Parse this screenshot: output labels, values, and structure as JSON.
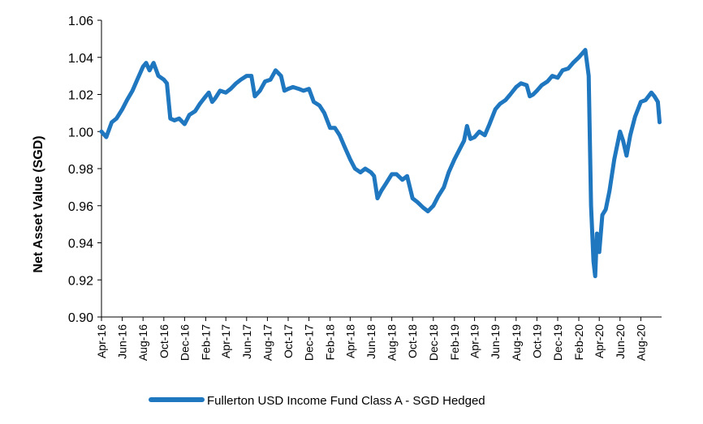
{
  "chart_data": {
    "type": "line",
    "title": "",
    "xlabel": "",
    "ylabel": "Net Asset Value (SGD)",
    "ylim": [
      0.9,
      1.06
    ],
    "y_ticks": [
      "0.90",
      "0.92",
      "0.94",
      "0.96",
      "0.98",
      "1.00",
      "1.02",
      "1.04",
      "1.06"
    ],
    "x_ticks": [
      "Apr-16",
      "Jun-16",
      "Aug-16",
      "Oct-16",
      "Dec-16",
      "Feb-17",
      "Apr-17",
      "Jun-17",
      "Aug-17",
      "Oct-17",
      "Dec-17",
      "Feb-18",
      "Apr-18",
      "Jun-18",
      "Aug-18",
      "Oct-18",
      "Dec-18",
      "Feb-19",
      "Apr-19",
      "Jun-19",
      "Aug-19",
      "Oct-19",
      "Dec-19",
      "Feb-20",
      "Apr-20",
      "Jun-20",
      "Aug-20"
    ],
    "grid": false,
    "legend_position": "bottom-center",
    "series": [
      {
        "name": "Fullerton USD Income Fund Class A - SGD Hedged",
        "color": "#1f77c0",
        "points": [
          [
            "2016-04-01",
            1.0
          ],
          [
            "2016-04-15",
            0.997
          ],
          [
            "2016-05-01",
            1.005
          ],
          [
            "2016-05-15",
            1.007
          ],
          [
            "2016-06-01",
            1.012
          ],
          [
            "2016-06-15",
            1.017
          ],
          [
            "2016-07-01",
            1.022
          ],
          [
            "2016-07-15",
            1.028
          ],
          [
            "2016-08-01",
            1.035
          ],
          [
            "2016-08-10",
            1.037
          ],
          [
            "2016-08-20",
            1.033
          ],
          [
            "2016-09-01",
            1.037
          ],
          [
            "2016-09-15",
            1.03
          ],
          [
            "2016-10-01",
            1.028
          ],
          [
            "2016-10-10",
            1.026
          ],
          [
            "2016-10-20",
            1.007
          ],
          [
            "2016-11-01",
            1.006
          ],
          [
            "2016-11-15",
            1.007
          ],
          [
            "2016-12-01",
            1.004
          ],
          [
            "2016-12-15",
            1.009
          ],
          [
            "2017-01-01",
            1.011
          ],
          [
            "2017-01-15",
            1.015
          ],
          [
            "2017-02-01",
            1.019
          ],
          [
            "2017-02-10",
            1.021
          ],
          [
            "2017-02-20",
            1.016
          ],
          [
            "2017-03-01",
            1.018
          ],
          [
            "2017-03-15",
            1.022
          ],
          [
            "2017-04-01",
            1.021
          ],
          [
            "2017-04-15",
            1.023
          ],
          [
            "2017-05-01",
            1.026
          ],
          [
            "2017-05-15",
            1.028
          ],
          [
            "2017-06-01",
            1.03
          ],
          [
            "2017-06-15",
            1.03
          ],
          [
            "2017-06-25",
            1.019
          ],
          [
            "2017-07-10",
            1.022
          ],
          [
            "2017-07-25",
            1.027
          ],
          [
            "2017-08-10",
            1.028
          ],
          [
            "2017-08-25",
            1.033
          ],
          [
            "2017-09-10",
            1.03
          ],
          [
            "2017-09-20",
            1.022
          ],
          [
            "2017-10-01",
            1.023
          ],
          [
            "2017-10-15",
            1.024
          ],
          [
            "2017-11-01",
            1.023
          ],
          [
            "2017-11-15",
            1.022
          ],
          [
            "2017-12-01",
            1.023
          ],
          [
            "2017-12-15",
            1.016
          ],
          [
            "2018-01-01",
            1.014
          ],
          [
            "2018-01-15",
            1.01
          ],
          [
            "2018-02-01",
            1.002
          ],
          [
            "2018-02-15",
            1.002
          ],
          [
            "2018-03-01",
            0.998
          ],
          [
            "2018-03-15",
            0.992
          ],
          [
            "2018-04-01",
            0.985
          ],
          [
            "2018-04-15",
            0.98
          ],
          [
            "2018-05-01",
            0.978
          ],
          [
            "2018-05-15",
            0.98
          ],
          [
            "2018-06-01",
            0.978
          ],
          [
            "2018-06-10",
            0.976
          ],
          [
            "2018-06-20",
            0.964
          ],
          [
            "2018-07-01",
            0.968
          ],
          [
            "2018-07-15",
            0.972
          ],
          [
            "2018-08-01",
            0.977
          ],
          [
            "2018-08-15",
            0.977
          ],
          [
            "2018-09-01",
            0.974
          ],
          [
            "2018-09-15",
            0.976
          ],
          [
            "2018-10-01",
            0.964
          ],
          [
            "2018-10-15",
            0.962
          ],
          [
            "2018-11-01",
            0.959
          ],
          [
            "2018-11-15",
            0.957
          ],
          [
            "2018-12-01",
            0.96
          ],
          [
            "2018-12-15",
            0.965
          ],
          [
            "2019-01-01",
            0.97
          ],
          [
            "2019-01-15",
            0.978
          ],
          [
            "2019-02-01",
            0.985
          ],
          [
            "2019-02-15",
            0.99
          ],
          [
            "2019-03-01",
            0.995
          ],
          [
            "2019-03-10",
            1.003
          ],
          [
            "2019-03-20",
            0.996
          ],
          [
            "2019-04-01",
            0.997
          ],
          [
            "2019-04-15",
            1.0
          ],
          [
            "2019-05-01",
            0.998
          ],
          [
            "2019-05-15",
            1.004
          ],
          [
            "2019-06-01",
            1.012
          ],
          [
            "2019-06-15",
            1.015
          ],
          [
            "2019-07-01",
            1.017
          ],
          [
            "2019-07-15",
            1.02
          ],
          [
            "2019-08-01",
            1.024
          ],
          [
            "2019-08-15",
            1.026
          ],
          [
            "2019-09-01",
            1.025
          ],
          [
            "2019-09-10",
            1.019
          ],
          [
            "2019-09-20",
            1.02
          ],
          [
            "2019-10-01",
            1.022
          ],
          [
            "2019-10-15",
            1.025
          ],
          [
            "2019-11-01",
            1.027
          ],
          [
            "2019-11-15",
            1.03
          ],
          [
            "2019-12-01",
            1.029
          ],
          [
            "2019-12-15",
            1.033
          ],
          [
            "2020-01-01",
            1.034
          ],
          [
            "2020-01-15",
            1.037
          ],
          [
            "2020-02-01",
            1.04
          ],
          [
            "2020-02-20",
            1.044
          ],
          [
            "2020-03-01",
            1.03
          ],
          [
            "2020-03-08",
            0.96
          ],
          [
            "2020-03-15",
            0.93
          ],
          [
            "2020-03-20",
            0.922
          ],
          [
            "2020-03-25",
            0.945
          ],
          [
            "2020-04-01",
            0.935
          ],
          [
            "2020-04-10",
            0.955
          ],
          [
            "2020-04-20",
            0.958
          ],
          [
            "2020-05-01",
            0.968
          ],
          [
            "2020-05-15",
            0.985
          ],
          [
            "2020-06-01",
            1.0
          ],
          [
            "2020-06-10",
            0.995
          ],
          [
            "2020-06-20",
            0.987
          ],
          [
            "2020-07-01",
            0.998
          ],
          [
            "2020-07-15",
            1.008
          ],
          [
            "2020-08-01",
            1.016
          ],
          [
            "2020-08-15",
            1.017
          ],
          [
            "2020-09-01",
            1.021
          ],
          [
            "2020-09-10",
            1.019
          ],
          [
            "2020-09-20",
            1.016
          ],
          [
            "2020-09-25",
            1.005
          ]
        ]
      }
    ]
  }
}
